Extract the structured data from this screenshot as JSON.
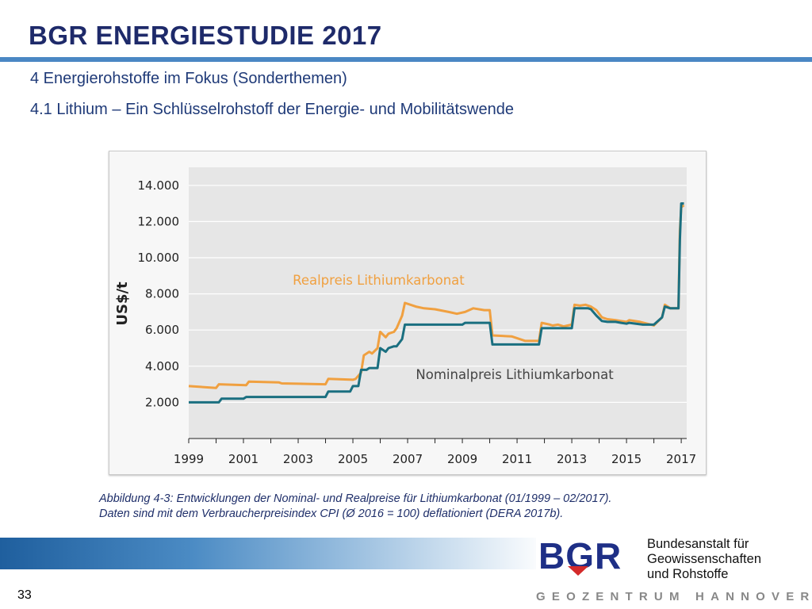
{
  "header": {
    "title": "BGR ENERGIESTUDIE 2017",
    "section": "4 Energierohstoffe im Fokus (Sonderthemen)",
    "subsection": "4.1 Lithium – Ein Schlüsselrohstoff der Energie- und Mobilitätswende"
  },
  "caption": {
    "line1": "Abbildung 4-3: Entwicklungen der Nominal- und Realpreise für Lithiumkarbonat (01/1999 – 02/2017).",
    "line2": "Daten sind mit dem Verbraucherpreisindex CPI (Ø 2016 = 100) deflationiert (DERA 2017b)."
  },
  "footer": {
    "org_line1": "Bundesanstalt für",
    "org_line2": "Geowissenschaften",
    "org_line3": "und Rohstoffe",
    "tagline": "GEOZENTRUM HANNOVER",
    "page_number": "33",
    "logo_text": "BGR"
  },
  "colors": {
    "title": "#1e2a6a",
    "accent_rule": "#4a87c4",
    "real_series": "#f0a040",
    "nominal_series": "#1a6f80",
    "plot_background": "#e6e6e6"
  },
  "chart_data": {
    "type": "line",
    "ylabel": "US$/t",
    "xlim": [
      1999,
      2017.2
    ],
    "ylim": [
      0,
      15000
    ],
    "y_ticks": [
      2000,
      4000,
      6000,
      8000,
      10000,
      12000,
      14000
    ],
    "y_tick_labels": [
      "2.000",
      "4.000",
      "6.000",
      "8.000",
      "10.000",
      "12.000",
      "14.000"
    ],
    "x_ticks": [
      1999,
      2001,
      2003,
      2005,
      2007,
      2009,
      2011,
      2013,
      2015,
      2017
    ],
    "x_tick_labels": [
      "1999",
      "2001",
      "2003",
      "2005",
      "2007",
      "2009",
      "2011",
      "2013",
      "2015",
      "2017"
    ],
    "grid": true,
    "series": [
      {
        "name": "Realpreis Lithiumkarbonat",
        "color": "#f0a040",
        "x": [
          1999.0,
          2000.0,
          2000.1,
          2001.1,
          2001.2,
          2002.3,
          2002.4,
          2004.0,
          2004.1,
          2005.0,
          2005.1,
          2005.3,
          2005.4,
          2005.6,
          2005.7,
          2005.9,
          2006.0,
          2006.2,
          2006.3,
          2006.5,
          2006.6,
          2006.8,
          2006.9,
          2007.3,
          2007.6,
          2008.0,
          2008.5,
          2008.8,
          2009.1,
          2009.4,
          2009.8,
          2010.0,
          2010.1,
          2010.8,
          2011.3,
          2011.8,
          2011.9,
          2012.2,
          2012.3,
          2012.5,
          2012.7,
          2013.0,
          2013.1,
          2013.3,
          2013.5,
          2013.7,
          2013.9,
          2014.1,
          2014.3,
          2014.6,
          2014.8,
          2015.0,
          2015.1,
          2015.5,
          2015.9,
          2016.0,
          2016.3,
          2016.4,
          2016.6,
          2016.9,
          2016.95,
          2017.0,
          2017.1
        ],
        "values": [
          2900,
          2800,
          3000,
          2950,
          3150,
          3100,
          3050,
          3000,
          3300,
          3250,
          3300,
          3650,
          4600,
          4800,
          4700,
          5000,
          5900,
          5600,
          5800,
          5900,
          6100,
          6800,
          7500,
          7300,
          7200,
          7150,
          7000,
          6900,
          7000,
          7200,
          7100,
          7100,
          5700,
          5650,
          5400,
          5400,
          6400,
          6300,
          6250,
          6300,
          6200,
          6300,
          7400,
          7350,
          7400,
          7300,
          7100,
          6700,
          6600,
          6550,
          6500,
          6450,
          6550,
          6450,
          6300,
          6250,
          6700,
          7400,
          7200,
          7200,
          11500,
          12800,
          12900
        ]
      },
      {
        "name": "Nominalpreis Lithiumkarbonat",
        "color": "#1a6f80",
        "x": [
          1999.0,
          2000.1,
          2000.2,
          2001.0,
          2001.1,
          2004.0,
          2004.1,
          2004.9,
          2005.0,
          2005.2,
          2005.3,
          2005.5,
          2005.6,
          2005.9,
          2006.0,
          2006.2,
          2006.3,
          2006.5,
          2006.6,
          2006.8,
          2006.9,
          2009.0,
          2009.1,
          2010.0,
          2010.1,
          2011.8,
          2011.9,
          2013.0,
          2013.1,
          2013.6,
          2013.7,
          2013.9,
          2014.1,
          2014.3,
          2014.6,
          2014.8,
          2015.0,
          2015.1,
          2015.6,
          2015.9,
          2016.0,
          2016.3,
          2016.4,
          2016.6,
          2016.9,
          2016.95,
          2017.0,
          2017.1
        ],
        "values": [
          2000,
          2000,
          2200,
          2200,
          2300,
          2300,
          2600,
          2600,
          2900,
          2900,
          3800,
          3800,
          3900,
          3900,
          5000,
          4800,
          5000,
          5100,
          5100,
          5500,
          6300,
          6300,
          6400,
          6400,
          5200,
          5200,
          6100,
          6100,
          7200,
          7200,
          7150,
          6800,
          6500,
          6450,
          6450,
          6400,
          6350,
          6400,
          6300,
          6300,
          6300,
          6700,
          7300,
          7200,
          7200,
          11000,
          13000,
          13000
        ]
      }
    ],
    "annotations": [
      {
        "text": "Realpreis Lithiumkarbonat",
        "series": "Realpreis Lithiumkarbonat"
      },
      {
        "text": "Nominalpreis Lithiumkarbonat",
        "series": "Nominalpreis Lithiumkarbonat"
      }
    ]
  }
}
